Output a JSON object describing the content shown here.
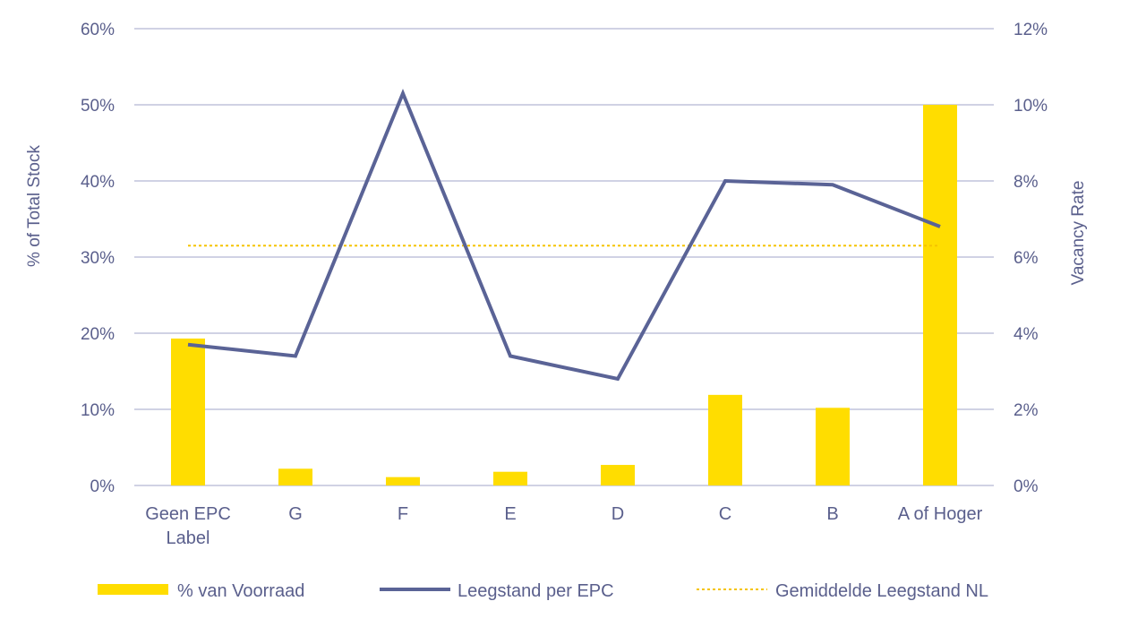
{
  "chart_data": {
    "type": "bar+line",
    "categories": [
      [
        "Geen EPC",
        "Label"
      ],
      [
        "G"
      ],
      [
        "F"
      ],
      [
        "E"
      ],
      [
        "D"
      ],
      [
        "C"
      ],
      [
        "B"
      ],
      [
        "A of Hoger"
      ]
    ],
    "series": [
      {
        "name": "% van Voorraad",
        "type": "bar",
        "axis": "left",
        "color": "#FFDD00",
        "values": [
          19.3,
          2.2,
          1.1,
          1.8,
          2.7,
          11.9,
          10.2,
          50.0
        ]
      },
      {
        "name": "Leegstand per EPC",
        "type": "line",
        "axis": "right",
        "color": "#5a6396",
        "values": [
          3.7,
          3.4,
          10.3,
          3.4,
          2.8,
          8.0,
          7.9,
          6.8
        ]
      },
      {
        "name": "Gemiddelde Leegstand NL",
        "type": "line",
        "style": "dotted",
        "axis": "right",
        "color": "#F5C400",
        "values": [
          6.3,
          6.3,
          6.3,
          6.3,
          6.3,
          6.3,
          6.3,
          6.3
        ]
      }
    ],
    "ylabel": "% of Total Stock",
    "y2label": "Vacancy Rate",
    "ylim": [
      0,
      60
    ],
    "y2lim": [
      0,
      12
    ],
    "yticks": [
      "0%",
      "10%",
      "20%",
      "30%",
      "40%",
      "50%",
      "60%"
    ],
    "y2ticks": [
      "0%",
      "2%",
      "4%",
      "6%",
      "8%",
      "10%",
      "12%"
    ],
    "grid": true,
    "legend": "bottom"
  }
}
